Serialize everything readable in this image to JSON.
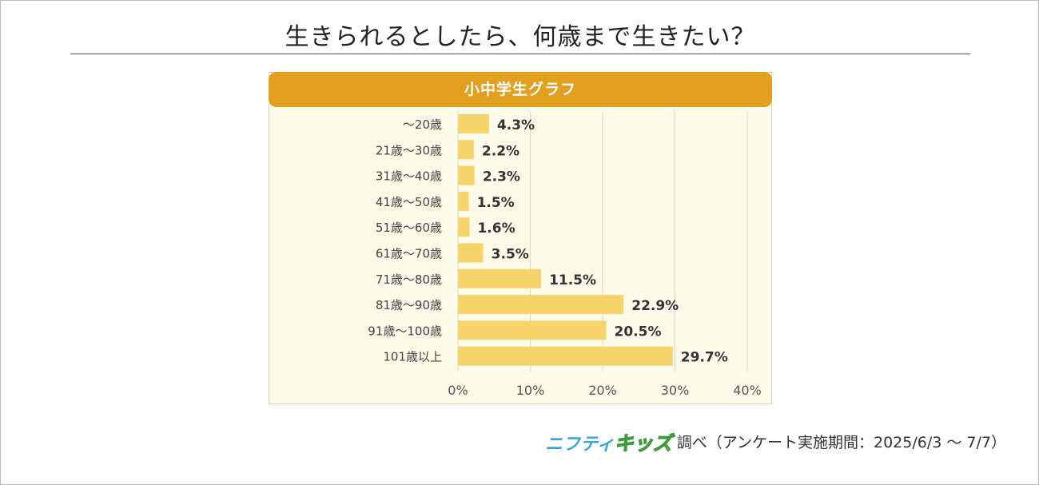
{
  "page_title": "生きられるとしたら、何歳まで生きたい？",
  "chart_header": "小中学生グラフ",
  "colors": {
    "header": "#e2a01e",
    "bar": "#f7d469",
    "panel": "#fdfbea",
    "brand_blue": "#3aa6e0",
    "brand_yellow": "#f5e400",
    "brand_green": "#3c9a3c"
  },
  "chart_data": {
    "type": "bar",
    "orientation": "horizontal",
    "categories": [
      "～20歳",
      "21歳～30歳",
      "31歳～40歳",
      "41歳～50歳",
      "51歳～60歳",
      "61歳～70歳",
      "71歳～80歳",
      "81歳～90歳",
      "91歳～100歳",
      "101歳以上"
    ],
    "values": [
      4.3,
      2.2,
      2.3,
      1.5,
      1.6,
      3.5,
      11.5,
      22.9,
      20.5,
      29.7
    ],
    "value_labels": [
      "4.3%",
      "2.2%",
      "2.3%",
      "1.5%",
      "1.6%",
      "3.5%",
      "11.5%",
      "22.9%",
      "20.5%",
      "29.7%"
    ],
    "x_ticks": [
      "0%",
      "10%",
      "20%",
      "30%",
      "40%"
    ],
    "xlim": [
      0,
      40
    ],
    "grid": true
  },
  "footer": {
    "brand_part1": "ニフティ",
    "brand_part2": "キッズ",
    "note": "調べ（アンケート実施期間：2025/6/3 ～ 7/7）"
  }
}
